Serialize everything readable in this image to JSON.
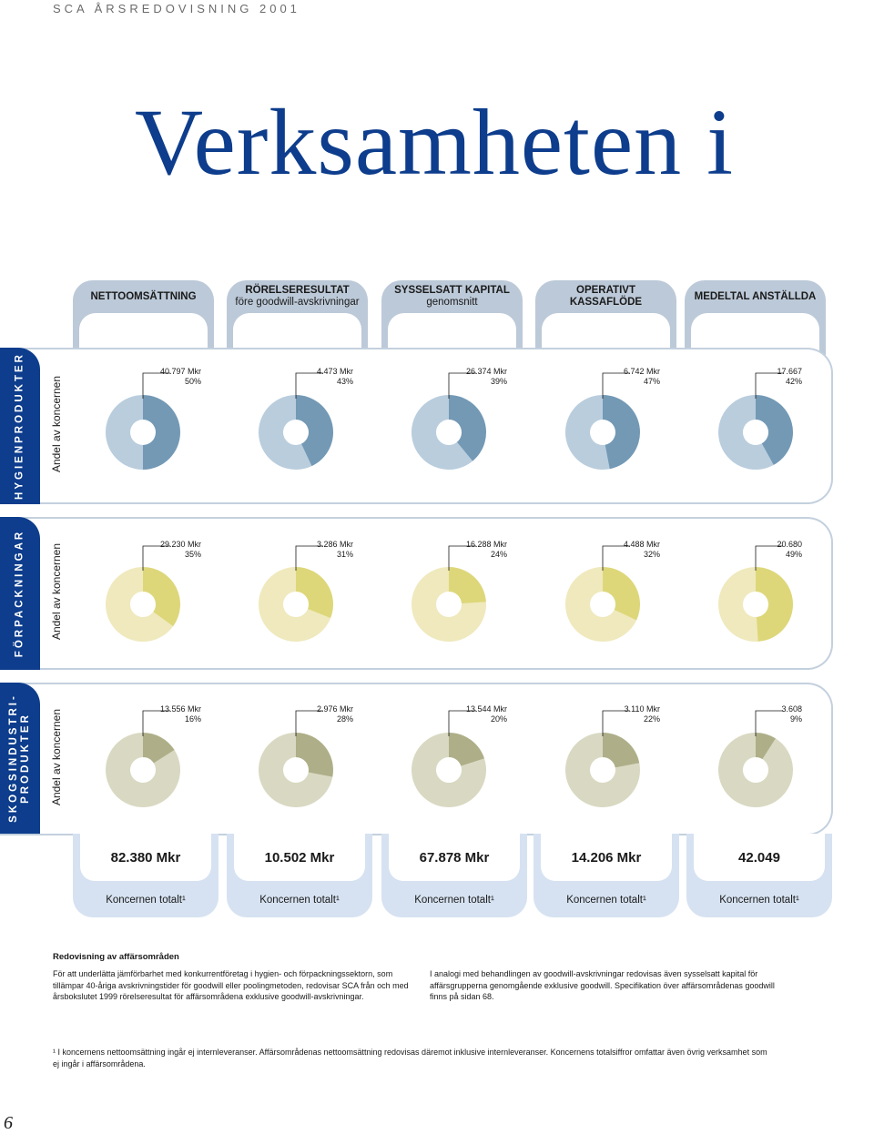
{
  "header": {
    "running_title": "SCA ÅRSREDOVISNING 2001",
    "main_title": "Verksamheten i"
  },
  "columns": [
    {
      "line1": "NETTOOMSÄTTNING",
      "line2": ""
    },
    {
      "line1": "RÖRELSERESULTAT",
      "line2": "före goodwill-avskrivningar"
    },
    {
      "line1": "SYSSELSATT KAPITAL",
      "line2": "genomsnitt"
    },
    {
      "line1": "OPERATIVT",
      "line2": "KASSAFLÖDE"
    },
    {
      "line1": "MEDELTAL ANSTÄLLDA",
      "line2": ""
    }
  ],
  "rows": [
    {
      "label": "HYGIENPRODUKTER",
      "andel": "Andel av koncernen",
      "colors": {
        "light": "#b9cddd",
        "dark": "#7399b5"
      },
      "cells": [
        {
          "value": "40.797 Mkr",
          "pct": "50%",
          "share": 0.5
        },
        {
          "value": "4.473 Mkr",
          "pct": "43%",
          "share": 0.43
        },
        {
          "value": "26.374 Mkr",
          "pct": "39%",
          "share": 0.39
        },
        {
          "value": "6.742 Mkr",
          "pct": "47%",
          "share": 0.47
        },
        {
          "value": "17.667",
          "pct": "42%",
          "share": 0.42
        }
      ]
    },
    {
      "label": "FÖRPACKNINGAR",
      "andel": "Andel av koncernen",
      "colors": {
        "light": "#efe9bd",
        "dark": "#ddd77a"
      },
      "cells": [
        {
          "value": "29.230 Mkr",
          "pct": "35%",
          "share": 0.35
        },
        {
          "value": "3.286 Mkr",
          "pct": "31%",
          "share": 0.31
        },
        {
          "value": "16.288 Mkr",
          "pct": "24%",
          "share": 0.24
        },
        {
          "value": "4.488 Mkr",
          "pct": "32%",
          "share": 0.32
        },
        {
          "value": "20.680",
          "pct": "49%",
          "share": 0.49
        }
      ]
    },
    {
      "label_line1": "SKOGSINDUSTRI-",
      "label_line2": "PRODUKTER",
      "andel": "Andel av koncernen",
      "colors": {
        "light": "#d9d9c3",
        "dark": "#aeaf88"
      },
      "cells": [
        {
          "value": "13.556 Mkr",
          "pct": "16%",
          "share": 0.16
        },
        {
          "value": "2.976 Mkr",
          "pct": "28%",
          "share": 0.28
        },
        {
          "value": "13.544 Mkr",
          "pct": "20%",
          "share": 0.2
        },
        {
          "value": "3.110 Mkr",
          "pct": "22%",
          "share": 0.22
        },
        {
          "value": "3.608",
          "pct": "9%",
          "share": 0.09
        }
      ]
    }
  ],
  "totals": {
    "label": "Koncernen totalt¹",
    "values": [
      "82.380 Mkr",
      "10.502 Mkr",
      "67.878 Mkr",
      "14.206 Mkr",
      "42.049"
    ]
  },
  "notes": {
    "title": "Redovisning av affärsområden",
    "col1": "För att underlätta jämförbarhet med konkurrentföretag i hygien- och förpackningssektorn, som tillämpar 40-åriga avskrivningstider för goodwill eller poolingmetoden, redovisar SCA från och med årsbokslutet 1999 rörelseresultat för affärsområdena exklusive goodwill-avskrivningar.",
    "col2": "I analogi med behandlingen av goodwill-avskrivningar redovisas även sysselsatt kapital för affärsgrupperna genomgående exklusive goodwill. Specifikation över affärsområdenas goodwill finns på sidan 68."
  },
  "footnote": "¹ I koncernens nettoomsättning ingår ej internleveranser. Affärsområdenas nettoomsättning redovisas däremot inklusive internleveranser. Koncernens totalsiffror omfattar även övrig verksamhet som ej ingår i affärsområdena.",
  "page_number": "6"
}
